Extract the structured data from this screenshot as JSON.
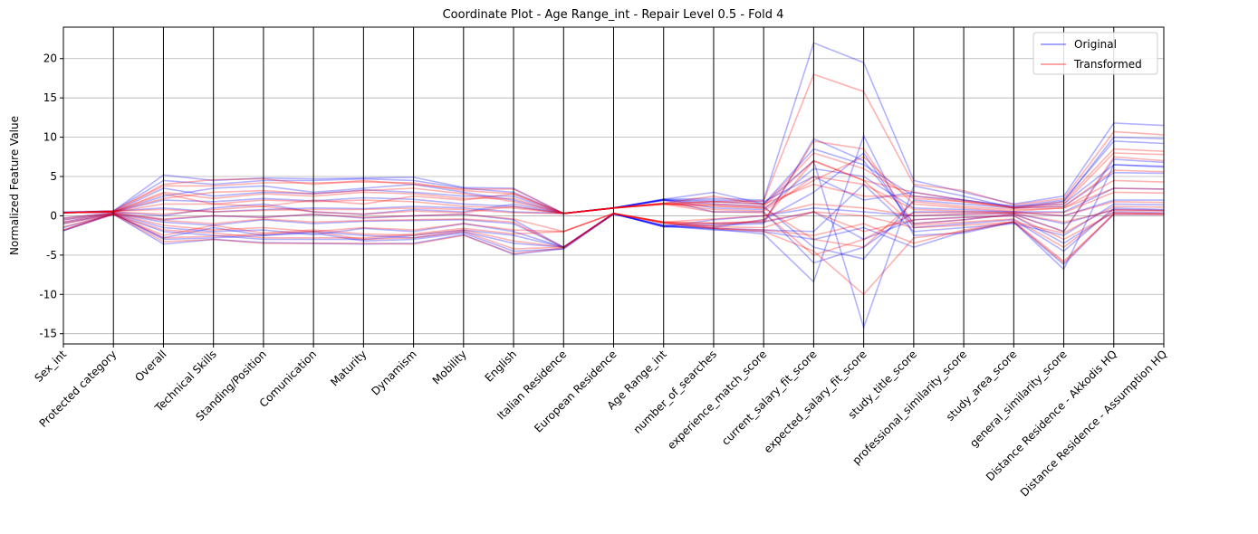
{
  "chart_data": {
    "type": "line",
    "title": "Coordinate Plot - Age Range_int - Repair Level 0.5 - Fold 4",
    "ylabel": "Normalized Feature Value",
    "xlabel": "",
    "ylim": [
      -16.3,
      24
    ],
    "yticks": [
      -15,
      -10,
      -5,
      0,
      5,
      10,
      15,
      20
    ],
    "grid": true,
    "legend_position": "top-right",
    "categories": [
      "Sex_int",
      "Protected category",
      "Overall",
      "Technical Skills",
      "Standing/Position",
      "Comunication",
      "Maturity",
      "Dynamism",
      "Mobility",
      "English",
      "Italian Residence",
      "European Residence",
      "Age Range_int",
      "number_of_searches",
      "experience_match_score",
      "current_salary_fit_score",
      "expected_salary_fit_score",
      "study_title_score",
      "professional_similarity_score",
      "study_area_score",
      "general_similarity_score",
      "Distance Residence - Akkodis HQ",
      "Distance Residence - Assumption HQ"
    ],
    "colors": {
      "original": "#0000ff",
      "transformed": "#ff0000"
    },
    "series": [
      {
        "name": "Original",
        "color": "#0000ff",
        "lines": [
          [
            0.5,
            0.6,
            5.2,
            4.5,
            4.8,
            4.7,
            4.8,
            4.9,
            3.6,
            3.5,
            0.3,
            1.0,
            2.1,
            2.2,
            2.0,
            22.0,
            19.5,
            4.5,
            3.0,
            1.5,
            2.5,
            11.8,
            11.5
          ],
          [
            -1.9,
            0.2,
            -3.6,
            -3.0,
            -3.4,
            -3.5,
            -3.6,
            -3.5,
            -2.4,
            -4.9,
            -4.2,
            0.2,
            -1.2,
            -1.7,
            -2.3,
            -8.4,
            10.2,
            -2.5,
            -2.2,
            -0.8,
            -6.8,
            6.5,
            6.2
          ],
          [
            0.4,
            0.5,
            2.0,
            1.8,
            2.2,
            1.9,
            2.3,
            2.1,
            1.5,
            1.2,
            0.3,
            1.0,
            2.0,
            1.8,
            1.5,
            7.0,
            -14.2,
            3.8,
            2.5,
            1.0,
            1.8,
            10.0,
            9.8
          ],
          [
            -0.8,
            0.3,
            -1.5,
            -2.0,
            -1.8,
            -2.4,
            -1.6,
            -2.0,
            -1.0,
            -2.0,
            -4.0,
            0.3,
            -1.4,
            -1.2,
            -1.0,
            9.8,
            7.0,
            -1.0,
            -0.5,
            0.2,
            -2.0,
            7.2,
            6.8
          ],
          [
            0.4,
            0.5,
            3.5,
            2.5,
            3.0,
            2.8,
            3.3,
            3.0,
            2.5,
            2.5,
            0.3,
            1.0,
            2.0,
            1.5,
            1.2,
            -4.0,
            -5.5,
            2.0,
            1.5,
            1.0,
            1.2,
            5.5,
            5.4
          ],
          [
            -1.5,
            0.2,
            -2.8,
            -1.5,
            -2.5,
            -2.0,
            -2.5,
            -2.8,
            -2.0,
            -3.5,
            -4.0,
            0.3,
            -1.3,
            -1.5,
            -0.5,
            3.0,
            8.0,
            -1.5,
            -1.0,
            -0.5,
            -4.5,
            1.0,
            0.8
          ],
          [
            0.4,
            0.6,
            1.0,
            0.5,
            0.8,
            1.0,
            0.9,
            1.2,
            1.0,
            0.5,
            0.3,
            1.0,
            2.1,
            1.0,
            0.8,
            6.0,
            5.0,
            1.0,
            0.8,
            0.5,
            0.5,
            3.5,
            3.4
          ],
          [
            -0.5,
            0.3,
            -0.8,
            -1.2,
            -0.5,
            -1.0,
            -0.7,
            -0.6,
            -0.5,
            -1.0,
            -4.0,
            0.3,
            -1.4,
            -1.6,
            -1.8,
            -2.0,
            4.0,
            -2.0,
            -1.5,
            -1.0,
            -2.5,
            1.5,
            1.4
          ],
          [
            0.4,
            0.5,
            2.5,
            3.5,
            3.8,
            3.0,
            3.5,
            4.0,
            3.0,
            2.0,
            0.3,
            1.0,
            2.0,
            2.0,
            1.8,
            5.0,
            2.0,
            3.0,
            2.0,
            1.2,
            1.5,
            6.5,
            6.3
          ],
          [
            -1.0,
            0.2,
            -2.0,
            -2.5,
            -3.0,
            -3.0,
            -3.0,
            -2.5,
            -1.8,
            -2.5,
            -4.0,
            0.2,
            -1.2,
            -1.0,
            -0.8,
            0.5,
            -3.0,
            -0.5,
            -0.2,
            0.0,
            -3.5,
            0.5,
            0.4
          ],
          [
            0.4,
            0.5,
            0.0,
            1.0,
            1.5,
            0.5,
            0.2,
            0.8,
            0.5,
            1.5,
            0.3,
            1.0,
            2.0,
            0.5,
            0.5,
            -6.0,
            -4.0,
            0.5,
            0.5,
            0.5,
            0.0,
            2.0,
            2.0
          ],
          [
            -1.9,
            0.3,
            -3.0,
            -2.8,
            -2.5,
            -2.2,
            -3.2,
            -3.0,
            -2.2,
            -4.5,
            -4.2,
            0.3,
            -1.3,
            -1.8,
            -2.0,
            -3.0,
            -1.5,
            -4.0,
            -2.0,
            -0.8,
            -6.2,
            0.2,
            0.2
          ],
          [
            0.4,
            0.6,
            4.5,
            4.0,
            4.5,
            4.5,
            4.7,
            4.5,
            3.5,
            3.0,
            0.3,
            1.0,
            2.1,
            3.0,
            1.5,
            8.5,
            6.5,
            2.5,
            2.0,
            1.2,
            2.0,
            9.5,
            9.2
          ],
          [
            -0.3,
            0.4,
            -0.5,
            0.0,
            -0.2,
            0.2,
            -0.3,
            0.0,
            0.2,
            -0.5,
            -4.0,
            0.3,
            -1.4,
            -0.5,
            0.0,
            1.0,
            0.5,
            0.0,
            0.2,
            0.3,
            -1.0,
            0.8,
            0.7
          ]
        ]
      },
      {
        "name": "Transformed",
        "color": "#ff0000",
        "lines": [
          [
            0.4,
            0.6,
            4.0,
            4.6,
            4.7,
            4.0,
            4.5,
            4.0,
            3.4,
            3.4,
            0.3,
            1.0,
            1.6,
            1.8,
            1.9,
            18.0,
            15.8,
            4.0,
            3.2,
            1.4,
            2.2,
            10.7,
            10.3
          ],
          [
            -1.8,
            0.2,
            -3.3,
            -3.0,
            -3.5,
            -3.5,
            -3.5,
            -3.6,
            -2.5,
            -4.8,
            -4.1,
            0.3,
            -0.9,
            -1.6,
            -2.0,
            -4.5,
            -10.0,
            -2.8,
            -2.0,
            -0.8,
            -6.0,
            0.3,
            0.2
          ],
          [
            0.4,
            0.5,
            1.5,
            1.5,
            2.0,
            1.8,
            2.0,
            1.8,
            1.2,
            1.0,
            0.3,
            1.0,
            1.5,
            1.5,
            1.2,
            7.0,
            4.5,
            3.0,
            2.0,
            1.0,
            1.5,
            8.0,
            7.8
          ],
          [
            -0.8,
            0.3,
            -1.2,
            -1.8,
            -1.5,
            -2.0,
            -1.5,
            -1.8,
            -1.0,
            -1.8,
            -2.0,
            0.3,
            -0.8,
            -1.0,
            -0.8,
            9.5,
            8.5,
            -1.0,
            -0.5,
            0.2,
            -2.0,
            7.5,
            7.0
          ],
          [
            0.4,
            0.5,
            3.0,
            2.2,
            2.8,
            2.5,
            3.0,
            2.8,
            2.2,
            2.2,
            0.3,
            1.0,
            1.5,
            1.3,
            1.0,
            -3.0,
            -4.0,
            1.8,
            1.2,
            0.8,
            1.0,
            4.5,
            4.3
          ],
          [
            -1.4,
            0.2,
            -2.5,
            -1.2,
            -2.2,
            -1.8,
            -2.3,
            -2.5,
            -1.8,
            -3.2,
            -4.0,
            0.3,
            -0.8,
            -1.3,
            -0.5,
            7.0,
            4.5,
            -1.2,
            -0.8,
            -0.4,
            -4.0,
            0.8,
            0.7
          ],
          [
            0.4,
            0.6,
            0.8,
            0.5,
            0.7,
            0.8,
            0.8,
            1.0,
            0.8,
            0.4,
            0.3,
            1.0,
            1.6,
            0.8,
            0.6,
            5.0,
            4.0,
            0.8,
            0.6,
            0.4,
            0.4,
            3.0,
            2.9
          ],
          [
            -0.5,
            0.3,
            -0.6,
            -1.0,
            -0.4,
            -0.8,
            -0.6,
            -0.5,
            -0.4,
            -0.8,
            -4.0,
            0.3,
            -0.9,
            -1.4,
            -1.5,
            0.5,
            0.0,
            -1.5,
            -1.2,
            -0.8,
            -2.2,
            1.2,
            1.1
          ],
          [
            0.4,
            0.5,
            2.2,
            3.0,
            3.2,
            2.8,
            3.2,
            3.5,
            2.8,
            1.8,
            0.3,
            1.0,
            1.5,
            1.8,
            1.5,
            4.0,
            2.5,
            2.5,
            1.8,
            1.0,
            1.2,
            5.8,
            5.6
          ],
          [
            -1.0,
            0.2,
            -1.8,
            -2.2,
            -2.8,
            -2.8,
            -2.8,
            -2.3,
            -1.6,
            -2.3,
            -2.0,
            0.3,
            -0.8,
            -0.9,
            -0.7,
            0.5,
            -2.0,
            -0.5,
            -0.2,
            0.0,
            -3.0,
            0.4,
            0.3
          ],
          [
            0.4,
            0.5,
            0.2,
            0.8,
            1.2,
            0.5,
            0.2,
            0.6,
            0.4,
            1.2,
            0.3,
            1.0,
            1.5,
            0.5,
            0.4,
            -5.0,
            -3.0,
            0.4,
            0.4,
            0.4,
            0.0,
            1.8,
            1.7
          ],
          [
            -1.8,
            0.3,
            -2.8,
            -2.6,
            -2.3,
            -2.0,
            -3.0,
            -2.8,
            -2.0,
            -4.2,
            -4.0,
            0.3,
            -0.9,
            -1.6,
            -1.8,
            -2.5,
            -1.0,
            -3.5,
            -1.8,
            -0.7,
            -5.8,
            0.2,
            0.2
          ],
          [
            0.4,
            0.6,
            3.8,
            3.8,
            4.2,
            4.2,
            4.3,
            4.2,
            3.2,
            2.8,
            0.3,
            1.0,
            1.6,
            2.5,
            1.4,
            8.0,
            6.0,
            2.2,
            1.8,
            1.1,
            1.8,
            8.5,
            8.2
          ],
          [
            -0.3,
            0.4,
            -0.4,
            0.0,
            -0.2,
            0.2,
            -0.2,
            0.0,
            0.2,
            -0.4,
            -2.0,
            0.3,
            -0.8,
            -0.4,
            0.0,
            1.5,
            1.0,
            0.0,
            0.2,
            0.3,
            -0.8,
            0.7,
            0.6
          ],
          [
            0.4,
            0.5,
            2.8,
            1.5,
            1.2,
            2.0,
            1.5,
            2.5,
            2.0,
            2.8,
            0.3,
            1.0,
            1.5,
            1.2,
            1.0,
            4.5,
            7.5,
            1.5,
            1.0,
            0.6,
            1.0,
            3.5,
            3.4
          ]
        ]
      }
    ]
  }
}
